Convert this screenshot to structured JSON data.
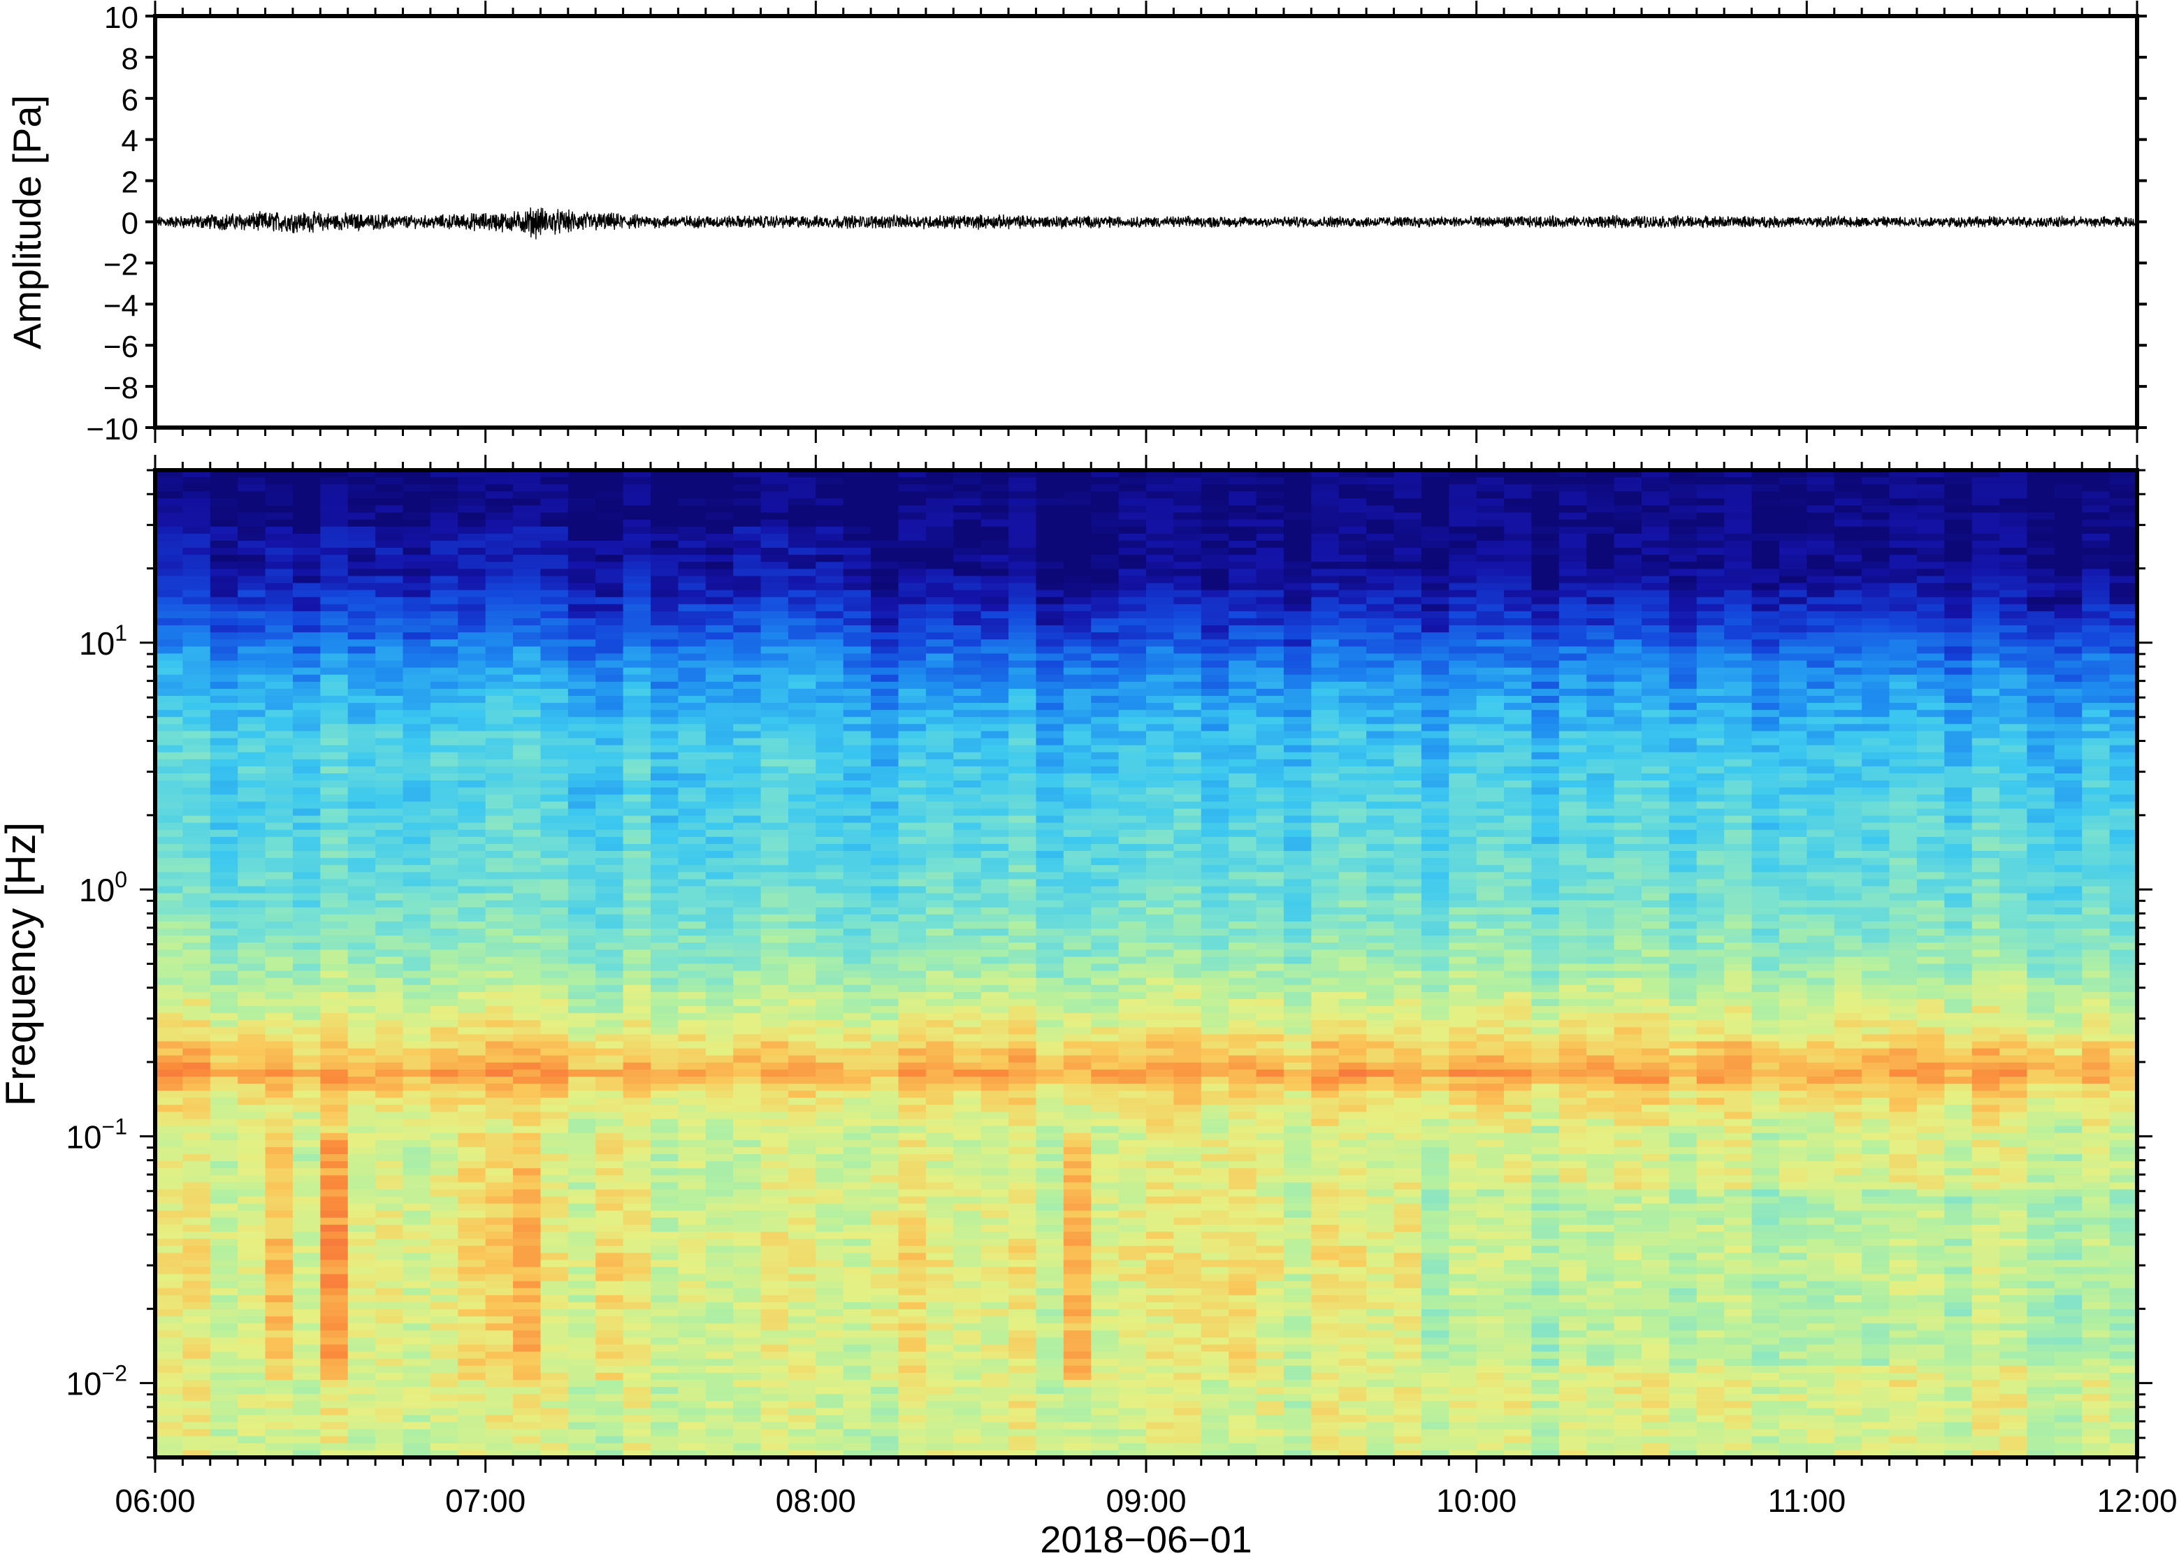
{
  "chart_data": [
    {
      "type": "line",
      "ylabel": "Amplitude [Pa]",
      "ylim": [
        -10,
        10
      ],
      "y_ticks": [
        "10",
        "8",
        "6",
        "4",
        "2",
        "0",
        "−2",
        "−4",
        "−6",
        "−8",
        "−10"
      ],
      "y_tick_values": [
        10,
        8,
        6,
        4,
        2,
        0,
        -2,
        -4,
        -6,
        -8,
        -10
      ],
      "xlim_hours": [
        6,
        12
      ],
      "series": [
        {
          "values_description": "pressure trace near zero",
          "x_hours": [
            6.0,
            6.4,
            6.8,
            7.1,
            7.15,
            7.2,
            7.5,
            8.0,
            8.5,
            9.0,
            9.5,
            10.0,
            10.5,
            11.0,
            11.5,
            12.0
          ],
          "envelope": [
            0.3,
            0.6,
            0.35,
            0.6,
            0.9,
            0.7,
            0.35,
            0.35,
            0.4,
            0.3,
            0.3,
            0.3,
            0.35,
            0.3,
            0.3,
            0.3
          ]
        }
      ],
      "line_color": "#000000"
    },
    {
      "type": "heatmap",
      "ylabel": "Frequency [Hz]",
      "y_scale": "log",
      "ylim": [
        0.005,
        50
      ],
      "y_ticks": [
        {
          "base": "10",
          "exp": "1",
          "value": 10
        },
        {
          "base": "10",
          "exp": "0",
          "value": 1
        },
        {
          "base": "10",
          "exp": "−1",
          "value": 0.1
        },
        {
          "base": "10",
          "exp": "−2",
          "value": 0.01
        }
      ],
      "x_ticks": [
        "06:00",
        "07:00",
        "08:00",
        "09:00",
        "10:00",
        "11:00",
        "12:00"
      ],
      "x_tick_hours": [
        6,
        7,
        8,
        9,
        10,
        11,
        12
      ],
      "xlabel": "2018−06−01",
      "colormap": "jet-like (dark blue = low power, red = high power)",
      "power_profile_by_frequency": {
        "freq_hz": [
          50,
          20,
          12,
          8,
          4,
          2,
          1,
          0.5,
          0.3,
          0.2,
          0.18,
          0.15,
          0.1,
          0.05,
          0.03,
          0.02,
          0.01,
          0.005
        ],
        "level": [
          0.0,
          0.02,
          0.12,
          0.22,
          0.33,
          0.38,
          0.42,
          0.5,
          0.6,
          0.72,
          0.76,
          0.66,
          0.58,
          0.6,
          0.62,
          0.6,
          0.6,
          0.58
        ]
      },
      "events_hours": [
        6.4,
        6.55,
        7.0,
        7.15,
        7.35,
        8.25,
        8.8,
        9.25
      ],
      "event_freq_range_hz": [
        0.01,
        0.1
      ]
    }
  ]
}
